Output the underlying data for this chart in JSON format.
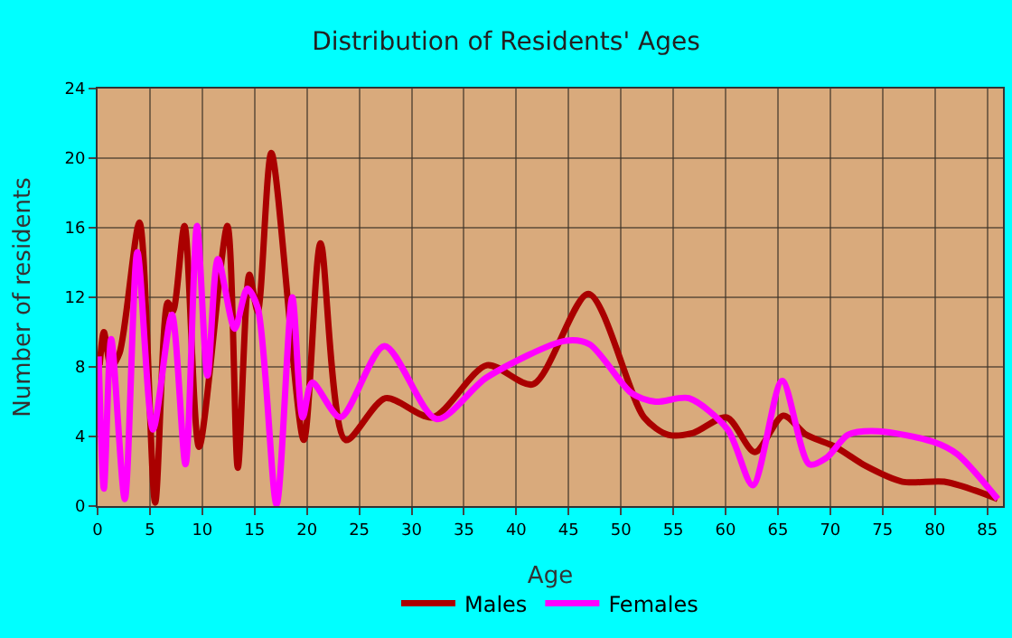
{
  "chart_data": {
    "type": "line",
    "title": "Distribution of Residents' Ages",
    "xlabel": "Age",
    "ylabel": "Number of residents",
    "xlim": [
      0,
      86.5
    ],
    "xticks": [
      0,
      5,
      10,
      15,
      20,
      25,
      30,
      35,
      40,
      45,
      50,
      55,
      60,
      65,
      70,
      75,
      80,
      85
    ],
    "ylim": [
      0,
      24
    ],
    "yticks": [
      0,
      4,
      8,
      12,
      16,
      20,
      24
    ],
    "grid": true,
    "legend": "bottom",
    "marker": "none",
    "line_style": "solid",
    "series": [
      {
        "name": "Males",
        "color": "#aa0000",
        "x": [
          0.2,
          0.6,
          1.3,
          2.1,
          4.0,
          5.5,
          6.7,
          7.2,
          8.3,
          9.7,
          12.4,
          13.4,
          14.5,
          15.3,
          16.6,
          19.7,
          21.3,
          23.7,
          27.5,
          32,
          37.2,
          41.6,
          46.9,
          52.2,
          54.5,
          56.9,
          60.1,
          62.8,
          65.5,
          67.7,
          70.5,
          73.4,
          76.9,
          80.9,
          83.8,
          86
        ],
        "values": [
          8.1,
          10,
          8,
          8.8,
          16.3,
          0.2,
          11.7,
          11.2,
          16.1,
          3.4,
          16.1,
          2.2,
          13.3,
          11.2,
          20.3,
          3.8,
          15.1,
          3.8,
          6.2,
          5.1,
          8.1,
          7.0,
          12.2,
          5.1,
          4.1,
          4.2,
          5.1,
          3.1,
          5.2,
          4.1,
          3.4,
          2.3,
          1.4,
          1.4,
          0.9,
          0.4
        ]
      },
      {
        "name": "Females",
        "color": "#ff00ff",
        "x": [
          0.1,
          0.6,
          1.3,
          2.6,
          3.8,
          5.3,
          7.1,
          8.4,
          9.5,
          10.5,
          11.5,
          13.1,
          14.3,
          15.3,
          17.1,
          18.6,
          19.6,
          20.5,
          23.2,
          27.4,
          32.4,
          37.2,
          44.7,
          47,
          51,
          53.3,
          56.5,
          60.2,
          62.6,
          65.4,
          68,
          69.7,
          71.7,
          74.6,
          79.8,
          82.1,
          86
        ],
        "values": [
          8.6,
          1.0,
          9.6,
          0.4,
          14.6,
          4.4,
          11.0,
          2.4,
          16.1,
          7.5,
          14.2,
          10.2,
          12.5,
          11.4,
          0.1,
          12.0,
          5.1,
          7.1,
          5.1,
          9.2,
          5.0,
          7.4,
          9.5,
          9.3,
          6.5,
          6.0,
          6.2,
          4.4,
          1.2,
          7.2,
          2.4,
          2.8,
          4.1,
          4.3,
          3.7,
          3.0,
          0.4
        ]
      }
    ]
  }
}
